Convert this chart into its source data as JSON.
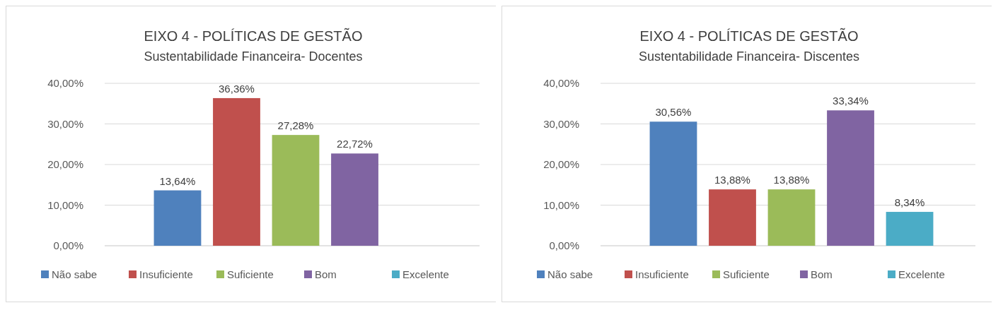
{
  "chart_data": [
    {
      "type": "bar",
      "title": "EIXO 4 - POLÍTICAS DE GESTÃO",
      "subtitle": "Sustentabilidade Financeira- Docentes",
      "categories": [
        null
      ],
      "series": [
        {
          "name": "Não sabe",
          "color": "#4f81bd",
          "values": [
            13.64
          ],
          "value_labels": [
            "13,64%"
          ]
        },
        {
          "name": "Insuficiente",
          "color": "#c0504d",
          "values": [
            36.36
          ],
          "value_labels": [
            "36,36%"
          ]
        },
        {
          "name": "Suficiente",
          "color": "#9bbb59",
          "values": [
            27.28
          ],
          "value_labels": [
            "27,28%"
          ]
        },
        {
          "name": "Bom",
          "color": "#8064a2",
          "values": [
            22.72
          ],
          "value_labels": [
            "22,72%"
          ]
        },
        {
          "name": "Excelente",
          "color": "#4bacc6",
          "values": [
            null
          ],
          "value_labels": [
            null
          ]
        }
      ],
      "ylim": [
        0,
        40
      ],
      "yticks": [
        {
          "value": 0,
          "label": "0,00%"
        },
        {
          "value": 10,
          "label": "10,00%"
        },
        {
          "value": 20,
          "label": "20,00%"
        },
        {
          "value": 30,
          "label": "30,00%"
        },
        {
          "value": 40,
          "label": "40,00%"
        }
      ],
      "grid": "y",
      "legend": "bottom"
    },
    {
      "type": "bar",
      "title": "EIXO 4 - POLÍTICAS DE GESTÃO",
      "subtitle": "Sustentabilidade Financeira- Discentes",
      "categories": [
        null
      ],
      "series": [
        {
          "name": "Não sabe",
          "color": "#4f81bd",
          "values": [
            30.56
          ],
          "value_labels": [
            "30,56%"
          ]
        },
        {
          "name": "Insuficiente",
          "color": "#c0504d",
          "values": [
            13.88
          ],
          "value_labels": [
            "13,88%"
          ]
        },
        {
          "name": "Suficiente",
          "color": "#9bbb59",
          "values": [
            13.88
          ],
          "value_labels": [
            "13,88%"
          ]
        },
        {
          "name": "Bom",
          "color": "#8064a2",
          "values": [
            33.34
          ],
          "value_labels": [
            "33,34%"
          ]
        },
        {
          "name": "Excelente",
          "color": "#4bacc6",
          "values": [
            8.34
          ],
          "value_labels": [
            "8,34%"
          ]
        }
      ],
      "ylim": [
        0,
        40
      ],
      "yticks": [
        {
          "value": 0,
          "label": "0,00%"
        },
        {
          "value": 10,
          "label": "10,00%"
        },
        {
          "value": 20,
          "label": "20,00%"
        },
        {
          "value": 30,
          "label": "30,00%"
        },
        {
          "value": 40,
          "label": "40,00%"
        }
      ],
      "grid": "y",
      "legend": "bottom"
    }
  ]
}
